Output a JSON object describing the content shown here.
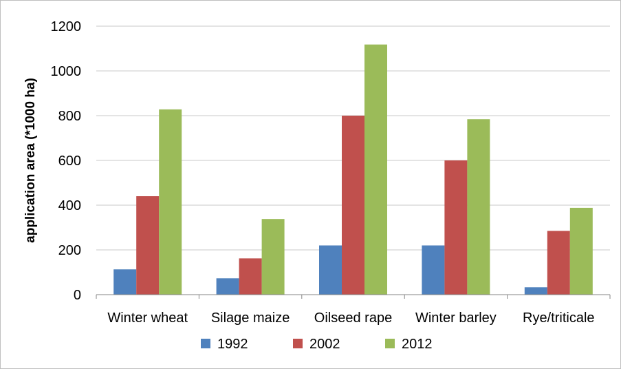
{
  "chart_data": {
    "type": "bar",
    "title": "",
    "xlabel": "",
    "ylabel": "application area (*1000 ha)",
    "categories": [
      "Winter wheat",
      "Silage maize",
      "Oilseed rape",
      "Winter barley",
      "Rye/triticale"
    ],
    "series": [
      {
        "name": "1992",
        "color": "#4f81bd",
        "values": [
          113,
          73,
          220,
          220,
          33
        ]
      },
      {
        "name": "2002",
        "color": "#c0504d",
        "values": [
          440,
          162,
          800,
          600,
          285
        ]
      },
      {
        "name": "2012",
        "color": "#9bbb59",
        "values": [
          828,
          338,
          1118,
          784,
          388
        ]
      }
    ],
    "ylim": [
      0,
      1200
    ],
    "yticks": [
      0,
      200,
      400,
      600,
      800,
      1000,
      1200
    ],
    "grid": true,
    "legend_position": "bottom"
  }
}
